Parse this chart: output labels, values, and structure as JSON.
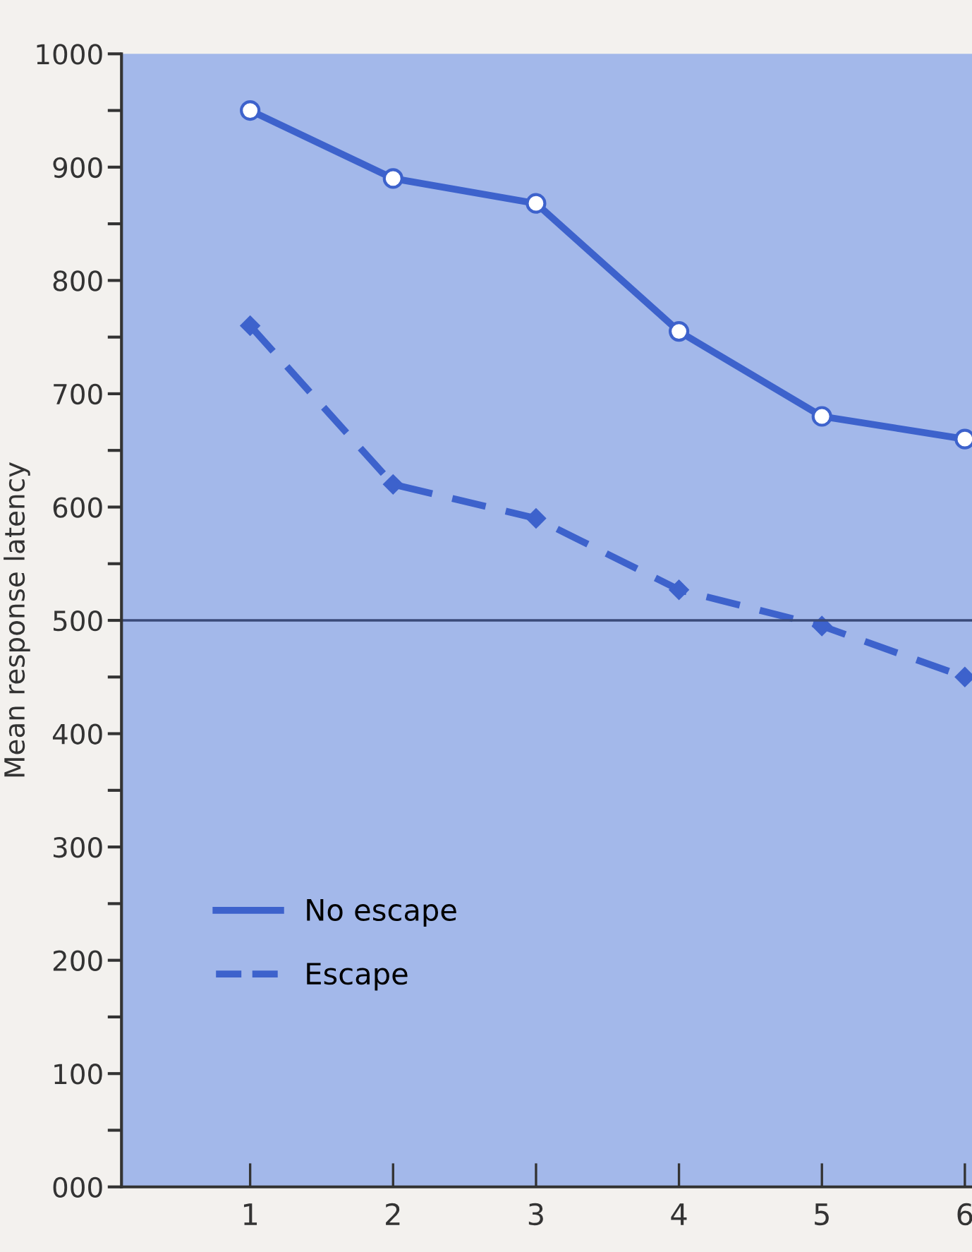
{
  "chart_data": {
    "type": "line",
    "ylabel": "Mean response latency",
    "x": [
      1,
      2,
      3,
      4,
      5,
      6
    ],
    "series": [
      {
        "name": "No escape",
        "color": "#3d62cc",
        "values": [
          950,
          890,
          868,
          755,
          680,
          660
        ],
        "line_style": "solid",
        "marker": "circle"
      },
      {
        "name": "Escape",
        "color": "#3d62cc",
        "values": [
          760,
          620,
          590,
          527,
          495,
          450
        ],
        "line_style": "dashed",
        "marker": "diamond"
      }
    ],
    "xlim": [
      0.1,
      6.05
    ],
    "xticks": [
      1,
      2,
      3,
      4,
      5,
      6
    ],
    "ylim": [
      0,
      1000
    ],
    "yticks": [
      {
        "value": 0,
        "label": "000"
      },
      {
        "value": 50,
        "label": null
      },
      100,
      {
        "value": 150,
        "label": null
      },
      200,
      {
        "value": 250,
        "label": null
      },
      300,
      {
        "value": 350,
        "label": null
      },
      400,
      {
        "value": 450,
        "label": null
      },
      500,
      {
        "value": 550,
        "label": null
      },
      600,
      {
        "value": 650,
        "label": null
      },
      700,
      {
        "value": 750,
        "label": null
      },
      800,
      {
        "value": 850,
        "label": null
      },
      900,
      {
        "value": 950,
        "label": null
      },
      1000
    ],
    "ref_lines": [
      {
        "axis": "y",
        "value": 500,
        "color": "#3a4a78",
        "line_style": "solid"
      }
    ],
    "grid": false,
    "legend": "bottom left"
  }
}
